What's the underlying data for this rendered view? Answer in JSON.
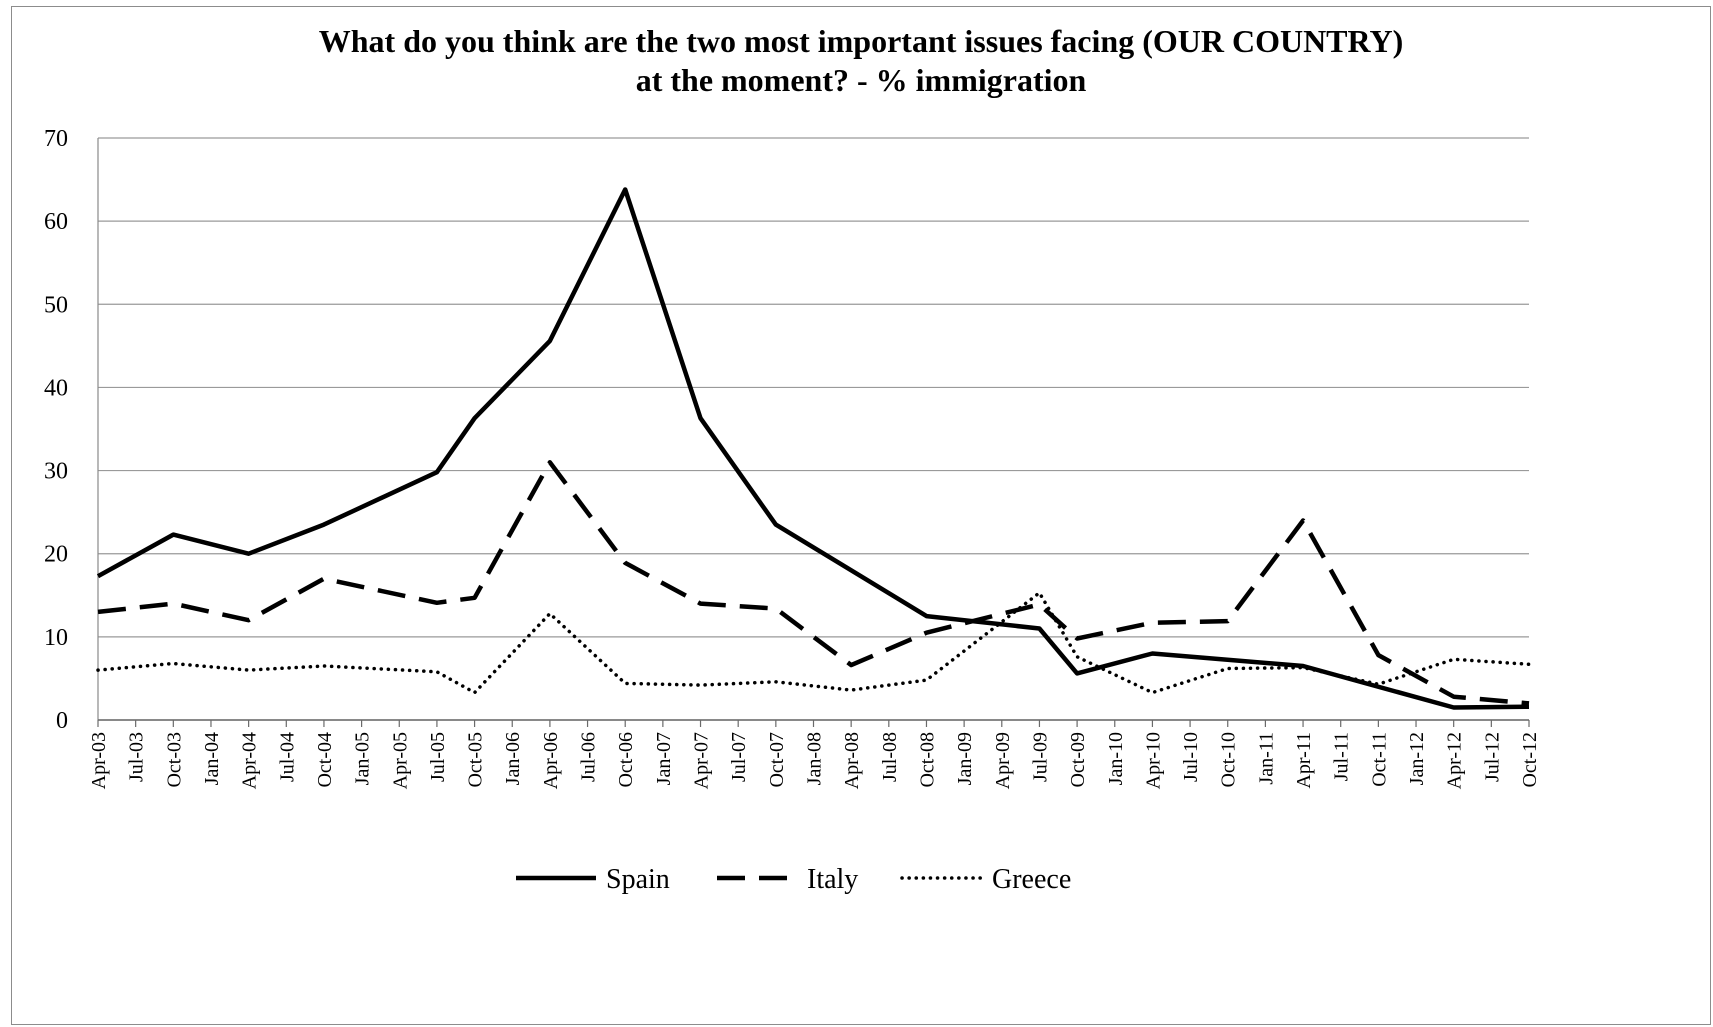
{
  "chart_data": {
    "type": "line",
    "title": "What do you think are the two most important issues facing (OUR COUNTRY) at the moment? - % immigration",
    "title_lines": [
      "What do you think are the two most important issues facing (OUR COUNTRY)",
      "at the moment? - % immigration"
    ],
    "xlabel": "",
    "ylabel": "",
    "ylim": [
      0,
      70
    ],
    "yticks": [
      "0",
      "10",
      "20",
      "30",
      "40",
      "50",
      "60",
      "70"
    ],
    "grid": "horizontal",
    "legend_position": "bottom",
    "categories": [
      "Apr-03",
      "Jul-03",
      "Oct-03",
      "Jan-04",
      "Apr-04",
      "Jul-04",
      "Oct-04",
      "Jan-05",
      "Apr-05",
      "Jul-05",
      "Oct-05",
      "Jan-06",
      "Apr-06",
      "Jul-06",
      "Oct-06",
      "Jan-07",
      "Apr-07",
      "Jul-07",
      "Oct-07",
      "Jan-08",
      "Apr-08",
      "Jul-08",
      "Oct-08",
      "Jan-09",
      "Apr-09",
      "Jul-09",
      "Oct-09",
      "Jan-10",
      "Apr-10",
      "Jul-10",
      "Oct-10",
      "Jan-11",
      "Apr-11",
      "Jul-11",
      "Oct-11",
      "Jan-12",
      "Apr-12",
      "Jul-12",
      "Oct-12"
    ],
    "series": [
      {
        "name": "Spain",
        "style": "solid",
        "x": [
          "Apr-03",
          "Oct-03",
          "Apr-04",
          "Oct-04",
          "Jul-05",
          "Oct-05",
          "Apr-06",
          "Oct-06",
          "Apr-07",
          "Oct-07",
          "Apr-08",
          "Oct-08",
          "Jul-09",
          "Oct-09",
          "Apr-10",
          "Apr-11",
          "Apr-12",
          "Oct-12"
        ],
        "values": [
          17.3,
          22.3,
          20.0,
          23.5,
          29.8,
          36.3,
          45.6,
          63.8,
          36.3,
          23.5,
          18.0,
          12.5,
          11.0,
          5.6,
          8.0,
          6.5,
          1.5,
          1.6
        ]
      },
      {
        "name": "Italy",
        "style": "dashed",
        "x": [
          "Apr-03",
          "Oct-03",
          "Apr-04",
          "Oct-04",
          "Jul-05",
          "Oct-05",
          "Apr-06",
          "Oct-06",
          "Apr-07",
          "Oct-07",
          "Apr-08",
          "Oct-08",
          "Jul-09",
          "Oct-09",
          "Apr-10",
          "Oct-10",
          "Apr-11",
          "Oct-11",
          "Apr-12",
          "Oct-12"
        ],
        "values": [
          13.0,
          14.0,
          12.0,
          17.0,
          14.1,
          14.7,
          31.0,
          18.9,
          14.0,
          13.4,
          6.6,
          10.5,
          13.9,
          9.8,
          11.7,
          11.9,
          24.0,
          7.8,
          2.8,
          2.0
        ]
      },
      {
        "name": "Greece",
        "style": "dotted",
        "x": [
          "Apr-03",
          "Oct-03",
          "Apr-04",
          "Oct-04",
          "Jul-05",
          "Oct-05",
          "Apr-06",
          "Oct-06",
          "Apr-07",
          "Oct-07",
          "Apr-08",
          "Oct-08",
          "Jul-09",
          "Oct-09",
          "Apr-10",
          "Oct-10",
          "Apr-11",
          "Oct-11",
          "Apr-12",
          "Oct-12"
        ],
        "values": [
          6.0,
          6.8,
          6.0,
          6.5,
          5.8,
          3.3,
          12.8,
          4.4,
          4.2,
          4.6,
          3.6,
          4.8,
          15.3,
          7.6,
          3.3,
          6.2,
          6.3,
          4.3,
          7.3,
          6.7
        ]
      }
    ]
  }
}
